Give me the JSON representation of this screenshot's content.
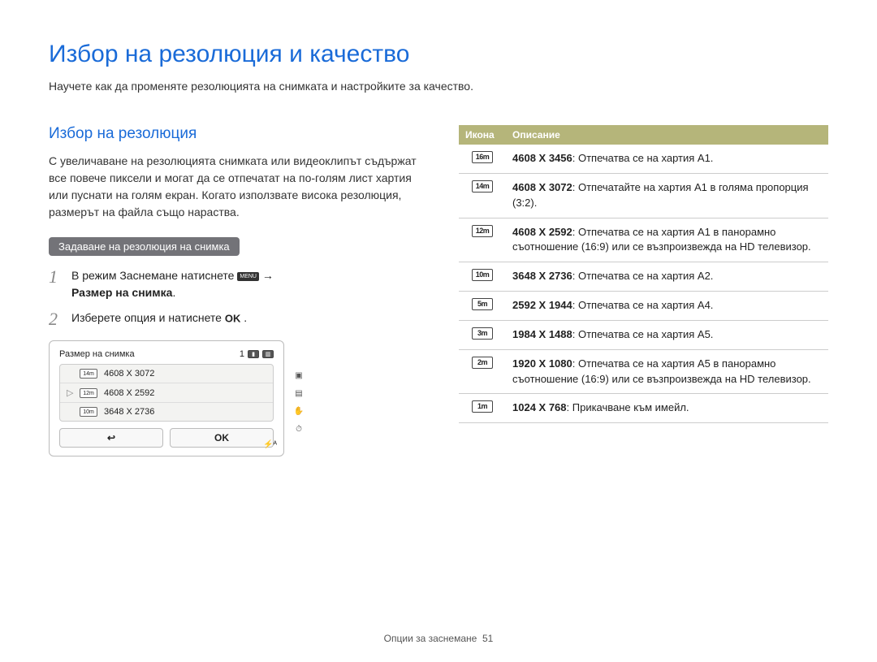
{
  "page": {
    "title": "Избор на резолюция и качество",
    "subtitle": "Научете как да променяте резолюцията на снимката и настройките за качество.",
    "footer_label": "Опции за заснемане",
    "footer_page": "51"
  },
  "left": {
    "heading": "Избор на резолюция",
    "body": "С увеличаване на резолюцията снимката или видеоклипът съдържат все повече пиксели и могат да се отпечатат на по-голям лист хартия или пуснати на голям екран. Когато използвате висока резолюция, размерът на файла също нараства.",
    "pill": "Задаване на резолюция на снимка",
    "step1_pre": "В режим Заснемане натиснете ",
    "step1_menu": "MENU",
    "step1_arrow": " → ",
    "step1_bold": "Размер на снимка",
    "step1_suffix": ".",
    "step2_pre": "Изберете опция и натиснете ",
    "step2_ok": "OK",
    "step2_suffix": " .",
    "camera": {
      "title": "Размер на снимка",
      "counter": "1",
      "rows": [
        {
          "icon": "14m",
          "label": "4608 X 3072",
          "selected": false
        },
        {
          "icon": "12m",
          "label": "4608 X 2592",
          "selected": true
        },
        {
          "icon": "10m",
          "label": "3648 X 2736",
          "selected": false
        }
      ],
      "btn_back": "↩",
      "btn_ok": "OK",
      "flash": "⚡ᴬ"
    }
  },
  "table": {
    "head_icon": "Икона",
    "head_desc": "Описание",
    "rows": [
      {
        "icon": "16m",
        "res": "4608 X 3456",
        "desc": ": Отпечатва се на хартия A1."
      },
      {
        "icon": "14m",
        "res": "4608 X 3072",
        "desc": ": Отпечатайте на хартия A1 в голяма пропорция (3:2)."
      },
      {
        "icon": "12m",
        "res": "4608 X 2592",
        "desc": ": Отпечатва се на хартия A1 в панорамно съотношение (16:9) или се възпроизвежда на HD телевизор."
      },
      {
        "icon": "10m",
        "res": "3648 X 2736",
        "desc": ": Отпечатва се на хартия A2."
      },
      {
        "icon": "5m",
        "res": "2592 X 1944",
        "desc": ": Отпечатва се на хартия A4."
      },
      {
        "icon": "3m",
        "res": "1984 X 1488",
        "desc": ": Отпечатва се на хартия A5."
      },
      {
        "icon": "2m",
        "res": "1920 X 1080",
        "desc": ": Отпечатва се на хартия A5 в панорамно съотношение (16:9) или се възпроизвежда на HD телевизор."
      },
      {
        "icon": "1m",
        "res": "1024 X 768",
        "desc": ": Прикачване към имейл."
      }
    ]
  }
}
